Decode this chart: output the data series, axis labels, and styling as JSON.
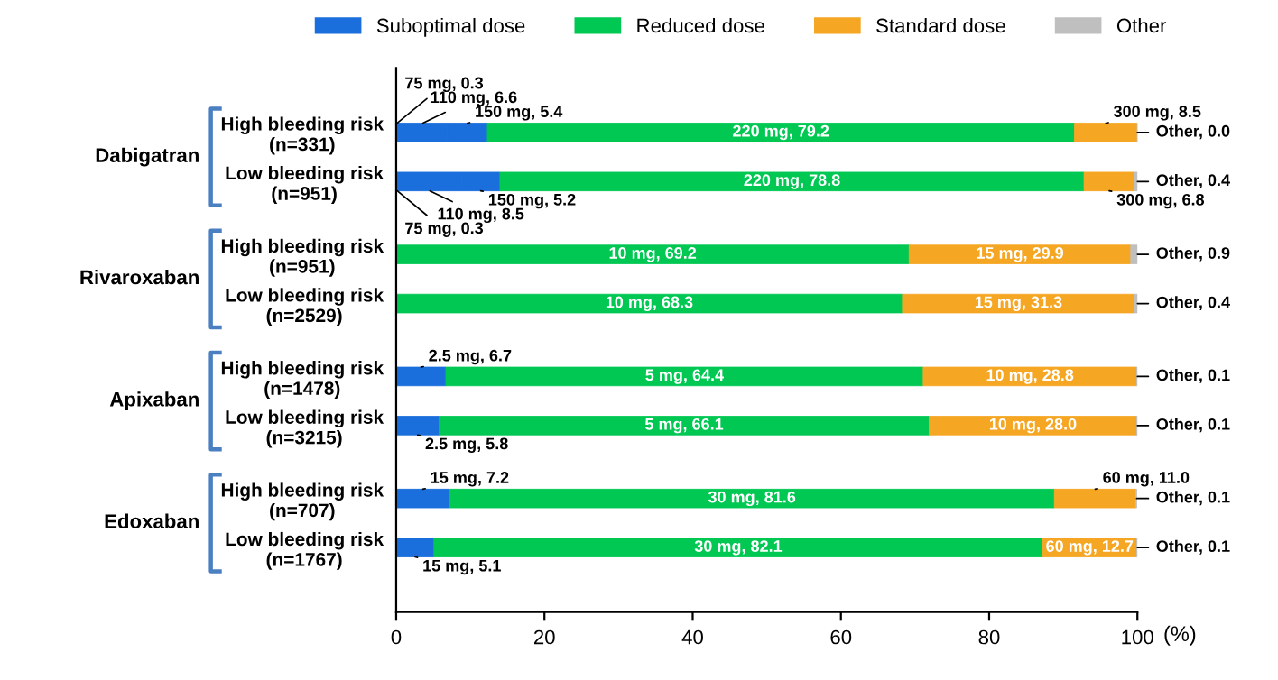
{
  "chart_data": {
    "type": "bar",
    "orientation": "horizontal",
    "stacked": true,
    "categories": [
      "High bleeding risk\n(n=331)",
      "Low bleeding risk\n(n=951)",
      "High bleeding risk\n(n=951)",
      "Low bleeding risk\n(n=2529)",
      "High bleeding risk\n(n=1478)",
      "Low bleeding risk\n(n=3215)",
      "High bleeding risk\n(n=707)",
      "Low bleeding risk\n(n=1767)"
    ],
    "annotations": [
      "Dabigatran",
      "Rivaroxaban",
      "Apixaban",
      "Edoxaban"
    ],
    "series": [
      {
        "name": "Suboptimal dose",
        "color": "#1a6fdc",
        "values": [
          0.3,
          0.3,
          null,
          null,
          6.7,
          5.8,
          7.2,
          5.1
        ],
        "value_labels": [
          "75 mg, 0.3",
          "75 mg, 0.3",
          null,
          null,
          "2.5 mg, 6.7",
          "2.5 mg, 5.8",
          "15 mg, 7.2",
          "15 mg, 5.1"
        ]
      },
      {
        "color": "#1a6fdc",
        "values": [
          6.6,
          8.5,
          null,
          null,
          null,
          null,
          null,
          null
        ],
        "value_labels": [
          "110 mg, 6.6",
          "110 mg, 8.5",
          null,
          null,
          null,
          null,
          null,
          null
        ]
      },
      {
        "color": "#1a6fdc",
        "values": [
          5.4,
          5.2,
          null,
          null,
          null,
          null,
          null,
          null
        ],
        "value_labels": [
          "150 mg, 5.4",
          "150 mg, 5.2",
          null,
          null,
          null,
          null,
          null,
          null
        ]
      },
      {
        "name": "Reduced dose",
        "color": "#00c853",
        "values": [
          79.2,
          78.8,
          69.2,
          68.3,
          64.4,
          66.1,
          81.6,
          82.1
        ],
        "value_labels": [
          "220 mg, 79.2",
          "220 mg, 78.8",
          "10 mg, 69.2",
          "10 mg, 68.3",
          "5 mg, 64.4",
          "5 mg, 66.1",
          "30 mg, 81.6",
          "30 mg, 82.1"
        ]
      },
      {
        "name": "Standard dose",
        "color": "#f5a623",
        "values": [
          8.5,
          6.8,
          29.9,
          31.3,
          28.8,
          28.0,
          11.0,
          12.7
        ],
        "value_labels": [
          "300 mg, 8.5",
          "300 mg, 6.8",
          "15 mg, 29.9",
          "15 mg, 31.3",
          "10 mg, 28.8",
          "10 mg, 28.0",
          "60 mg, 11.0",
          "60 mg, 12.7"
        ]
      },
      {
        "name": "Other",
        "color": "#bfbfbf",
        "values": [
          0.0,
          0.4,
          0.9,
          0.4,
          0.1,
          0.1,
          0.1,
          0.1
        ],
        "value_labels": [
          "Other, 0.0",
          "Other, 0.4",
          "Other, 0.9",
          "Other, 0.4",
          "Other, 0.1",
          "Other, 0.1",
          "Other, 0.1",
          "Other, 0.1"
        ]
      }
    ],
    "xlim": [
      0,
      100
    ],
    "xticks": [
      0,
      20,
      40,
      60,
      80,
      100
    ],
    "xlabel": "(%)",
    "grid": false,
    "legend": "top"
  }
}
